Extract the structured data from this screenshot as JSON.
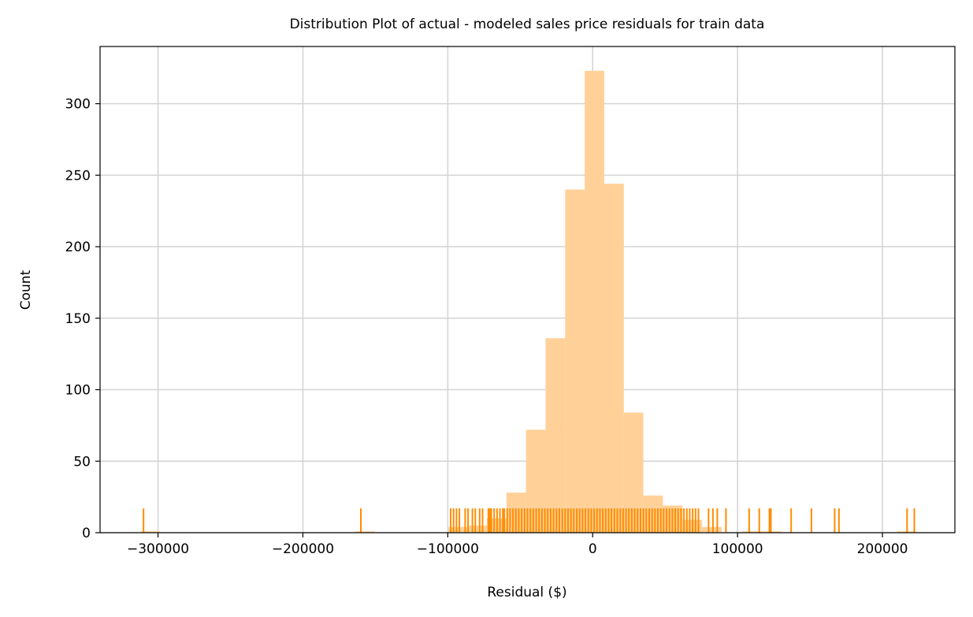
{
  "chart_data": {
    "type": "histogram",
    "title": "Distribution Plot of actual - modeled sales price residuals for train data",
    "xlabel": "Residual ($)",
    "ylabel": "Count",
    "xlim": [
      -340000,
      250000
    ],
    "ylim": [
      0,
      340
    ],
    "grid": true,
    "x_ticks": [
      -300000,
      -200000,
      -100000,
      0,
      100000,
      200000
    ],
    "x_tick_labels": [
      "−300000",
      "−200000",
      "−100000",
      "0",
      "100000",
      "200000"
    ],
    "y_ticks": [
      0,
      50,
      100,
      150,
      200,
      250,
      300
    ],
    "y_tick_labels": [
      "0",
      "50",
      "100",
      "150",
      "200",
      "250",
      "300"
    ],
    "colors": {
      "histogram": "#ffd199",
      "rug": "#ff8c00",
      "grid": "#d3d3d3"
    },
    "bins": [
      {
        "x0": -312000,
        "x1": -298500,
        "count": 1
      },
      {
        "x0": -164000,
        "x1": -150500,
        "count": 1
      },
      {
        "x0": -100000,
        "x1": -86500,
        "count": 4
      },
      {
        "x0": -86500,
        "x1": -73000,
        "count": 5
      },
      {
        "x0": -73000,
        "x1": -59500,
        "count": 10
      },
      {
        "x0": -59500,
        "x1": -46000,
        "count": 28
      },
      {
        "x0": -46000,
        "x1": -32500,
        "count": 72
      },
      {
        "x0": -32500,
        "x1": -19000,
        "count": 136
      },
      {
        "x0": -19000,
        "x1": -5500,
        "count": 240
      },
      {
        "x0": -5500,
        "x1": 8000,
        "count": 323
      },
      {
        "x0": 8000,
        "x1": 21500,
        "count": 244
      },
      {
        "x0": 21500,
        "x1": 35000,
        "count": 84
      },
      {
        "x0": 35000,
        "x1": 48500,
        "count": 26
      },
      {
        "x0": 48500,
        "x1": 62000,
        "count": 19
      },
      {
        "x0": 62000,
        "x1": 75500,
        "count": 9
      },
      {
        "x0": 75500,
        "x1": 89000,
        "count": 4
      },
      {
        "x0": 103000,
        "x1": 116500,
        "count": 1
      },
      {
        "x0": 116500,
        "x1": 130000,
        "count": 1
      },
      {
        "x0": 210000,
        "x1": 223500,
        "count": 1
      }
    ],
    "rug": {
      "height_count": 17,
      "values": [
        -310000,
        -160000,
        -98000,
        -96000,
        -94000,
        -92000,
        -88000,
        -86000,
        -83000,
        -81000,
        -78000,
        -76000,
        -72000,
        -71000,
        -70000,
        -68000,
        -66000,
        -64000,
        -62000,
        -61000,
        -59000,
        -57000,
        -55000,
        -53000,
        -51000,
        -49000,
        -47000,
        -45000,
        -43000,
        -41000,
        -39000,
        -37000,
        -35000,
        -33000,
        -31000,
        -29000,
        -27000,
        -25000,
        -23000,
        -21000,
        -19000,
        -17000,
        -15000,
        -13000,
        -11000,
        -9000,
        -7000,
        -5000,
        -3000,
        -1000,
        1000,
        3000,
        5000,
        7000,
        9000,
        11000,
        13000,
        15000,
        17000,
        19000,
        21000,
        23000,
        25000,
        27000,
        29000,
        31000,
        33000,
        35000,
        37000,
        39000,
        41000,
        43000,
        45000,
        47000,
        49000,
        51000,
        53000,
        55000,
        57000,
        59000,
        61000,
        63000,
        65000,
        67000,
        69000,
        71000,
        73000,
        80000,
        83000,
        86000,
        92000,
        108000,
        115000,
        122000,
        123000,
        137000,
        151000,
        167000,
        170000,
        217000,
        222000
      ]
    }
  }
}
